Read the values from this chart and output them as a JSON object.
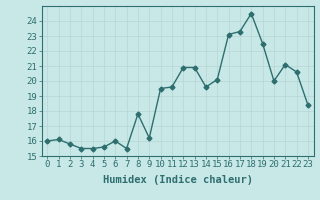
{
  "x": [
    0,
    1,
    2,
    3,
    4,
    5,
    6,
    7,
    8,
    9,
    10,
    11,
    12,
    13,
    14,
    15,
    16,
    17,
    18,
    19,
    20,
    21,
    22,
    23
  ],
  "y": [
    16.0,
    16.1,
    15.8,
    15.5,
    15.5,
    15.6,
    16.0,
    15.5,
    17.8,
    16.2,
    19.5,
    19.6,
    20.9,
    20.9,
    19.6,
    20.1,
    23.1,
    23.3,
    24.5,
    22.5,
    20.0,
    21.1,
    20.6,
    18.4
  ],
  "line_color": "#2e6e6e",
  "marker": "D",
  "marker_size": 2.5,
  "bg_color": "#c8e8e8",
  "grid_color": "#b8d4d4",
  "xlabel": "Humidex (Indice chaleur)",
  "ylim": [
    15,
    25
  ],
  "yticks": [
    15,
    16,
    17,
    18,
    19,
    20,
    21,
    22,
    23,
    24
  ],
  "xticks": [
    0,
    1,
    2,
    3,
    4,
    5,
    6,
    7,
    8,
    9,
    10,
    11,
    12,
    13,
    14,
    15,
    16,
    17,
    18,
    19,
    20,
    21,
    22,
    23
  ],
  "font_color": "#2e6e6e",
  "xlabel_fontsize": 7.5,
  "tick_fontsize": 6.5,
  "linewidth": 1.0
}
